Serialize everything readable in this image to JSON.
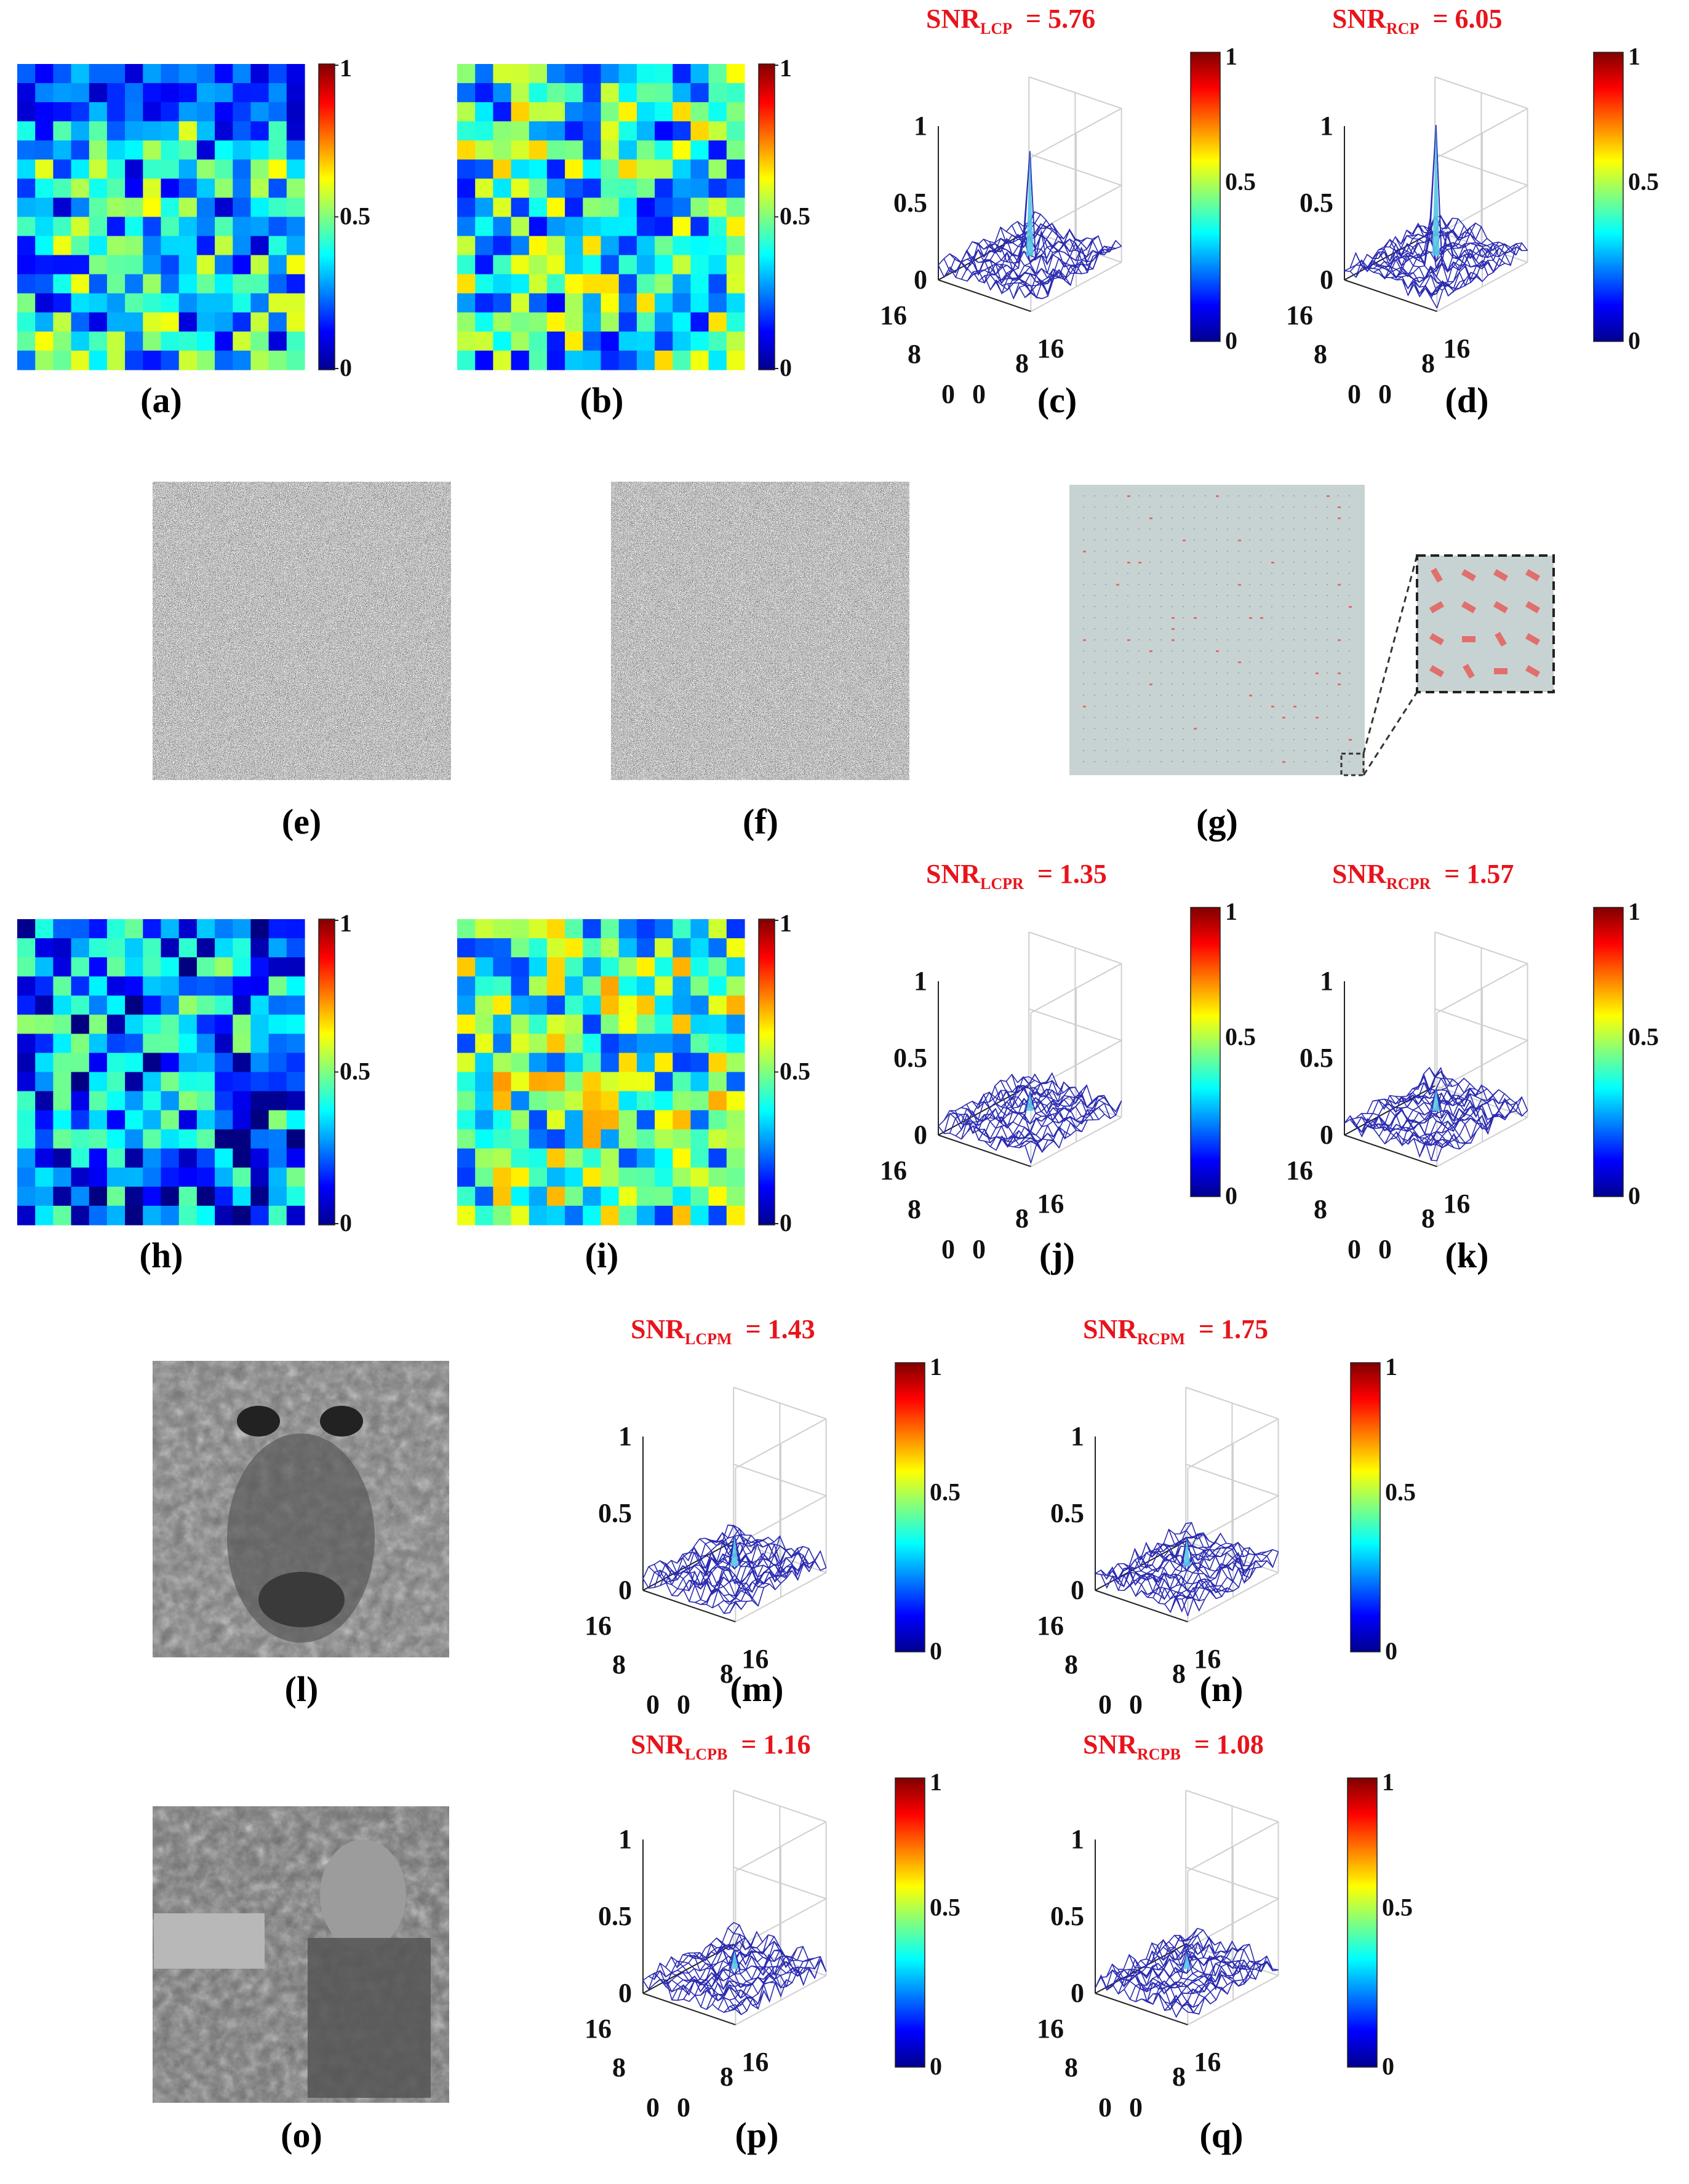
{
  "panels": [
    {
      "id": "a",
      "label": "(a)",
      "kind": "heatmap",
      "colorbar_ticks": [
        "1",
        "0.5",
        "0"
      ]
    },
    {
      "id": "b",
      "label": "(b)",
      "kind": "heatmap",
      "colorbar_ticks": [
        "1",
        "0.5",
        "0"
      ]
    },
    {
      "id": "c",
      "label": "(c)",
      "kind": "surface",
      "snr": {
        "base": "SNR",
        "sub": "LCP",
        "value": "= 5.76"
      },
      "peak": 0.78,
      "z_ticks": [
        "1",
        "0.5",
        "0"
      ],
      "axis_ticks": [
        "16",
        "8",
        "0",
        "0",
        "8",
        "16"
      ],
      "colorbar_ticks": [
        "1",
        "0.5",
        "0"
      ]
    },
    {
      "id": "d",
      "label": "(d)",
      "kind": "surface",
      "snr": {
        "base": "SNR",
        "sub": "RCP",
        "value": "= 6.05"
      },
      "peak": 0.95,
      "z_ticks": [
        "1",
        "0.5",
        "0"
      ],
      "axis_ticks": [
        "16",
        "8",
        "0",
        "0",
        "8",
        "16"
      ],
      "colorbar_ticks": [
        "1",
        "0.5",
        "0"
      ]
    },
    {
      "id": "e",
      "label": "(e)",
      "kind": "noise"
    },
    {
      "id": "f",
      "label": "(f)",
      "kind": "noise"
    },
    {
      "id": "g",
      "label": "(g)",
      "kind": "metasurface"
    },
    {
      "id": "h",
      "label": "(h)",
      "kind": "heatmap",
      "colorbar_ticks": [
        "1",
        "0.5",
        "0"
      ]
    },
    {
      "id": "i",
      "label": "(i)",
      "kind": "heatmap",
      "colorbar_ticks": [
        "1",
        "0.5",
        "0"
      ]
    },
    {
      "id": "j",
      "label": "(j)",
      "kind": "surface",
      "snr": {
        "base": "SNR",
        "sub": "LCPR",
        "value": "= 1.35"
      },
      "peak": 0.22,
      "z_ticks": [
        "1",
        "0.5",
        "0"
      ],
      "axis_ticks": [
        "16",
        "8",
        "0",
        "0",
        "8",
        "16"
      ],
      "colorbar_ticks": [
        "1",
        "0.5",
        "0"
      ]
    },
    {
      "id": "k",
      "label": "(k)",
      "kind": "surface",
      "snr": {
        "base": "SNR",
        "sub": "RCPR",
        "value": "= 1.57"
      },
      "peak": 0.24,
      "z_ticks": [
        "1",
        "0.5",
        "0"
      ],
      "axis_ticks": [
        "16",
        "8",
        "0",
        "0",
        "8",
        "16"
      ],
      "colorbar_ticks": [
        "1",
        "0.5",
        "0"
      ]
    },
    {
      "id": "l",
      "label": "(l)",
      "kind": "photo"
    },
    {
      "id": "m",
      "label": "(m)",
      "kind": "surface",
      "snr": {
        "base": "SNR",
        "sub": "LCPM",
        "value": "= 1.43"
      },
      "peak": 0.3,
      "z_ticks": [
        "1",
        "0.5",
        "0"
      ],
      "axis_ticks": [
        "16",
        "8",
        "0",
        "0",
        "8",
        "16"
      ],
      "colorbar_ticks": [
        "1",
        "0.5",
        "0"
      ]
    },
    {
      "id": "n",
      "label": "(n)",
      "kind": "surface",
      "snr": {
        "base": "SNR",
        "sub": "RCPM",
        "value": "= 1.75"
      },
      "peak": 0.28,
      "z_ticks": [
        "1",
        "0.5",
        "0"
      ],
      "axis_ticks": [
        "16",
        "8",
        "0",
        "0",
        "8",
        "16"
      ],
      "colorbar_ticks": [
        "1",
        "0.5",
        "0"
      ]
    },
    {
      "id": "o",
      "label": "(o)",
      "kind": "photo"
    },
    {
      "id": "p",
      "label": "(p)",
      "kind": "surface",
      "snr": {
        "base": "SNR",
        "sub": "LCPB",
        "value": "= 1.16"
      },
      "peak": 0.22,
      "z_ticks": [
        "1",
        "0.5",
        "0"
      ],
      "axis_ticks": [
        "16",
        "8",
        "0",
        "0",
        "8",
        "16"
      ],
      "colorbar_ticks": [
        "1",
        "0.5",
        "0"
      ]
    },
    {
      "id": "q",
      "label": "(q)",
      "kind": "surface",
      "snr": {
        "base": "SNR",
        "sub": "RCPB",
        "value": "= 1.08"
      },
      "peak": 0.2,
      "z_ticks": [
        "1",
        "0.5",
        "0"
      ],
      "axis_ticks": [
        "16",
        "8",
        "0",
        "0",
        "8",
        "16"
      ],
      "colorbar_ticks": [
        "1",
        "0.5",
        "0"
      ]
    }
  ],
  "colors": {
    "snr_text": "#e8141b",
    "mesh": "#2a2ab0",
    "grid": "#d0d0d0",
    "metasurface_bg": "#c7d3d2",
    "metasurface_dot": "#e0706c"
  }
}
